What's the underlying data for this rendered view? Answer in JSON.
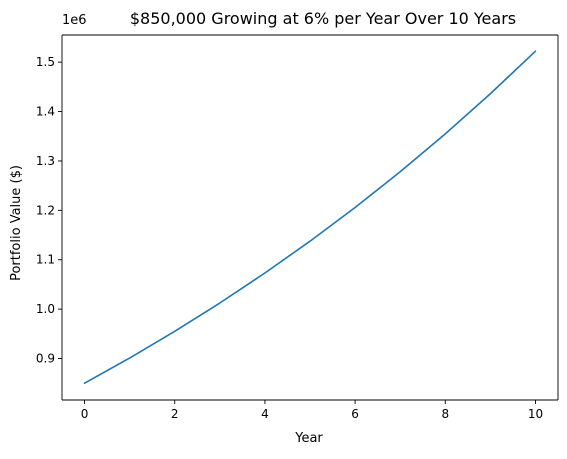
{
  "chart_data": {
    "type": "line",
    "title": "$850,000 Growing at 6% per Year Over 10 Years",
    "xlabel": "Year",
    "ylabel": "Portfolio Value ($)",
    "y_offset_label": "1e6",
    "y_scale_factor": 1000000,
    "xlim": [
      -0.5,
      10.5
    ],
    "ylim": [
      816000,
      1555000
    ],
    "grid": false,
    "legend": "none",
    "x_ticks": [
      0,
      2,
      4,
      6,
      8,
      10
    ],
    "x_tick_labels": [
      "0",
      "2",
      "4",
      "6",
      "8",
      "10"
    ],
    "y_ticks": [
      900000,
      1000000,
      1100000,
      1200000,
      1300000,
      1400000,
      1500000
    ],
    "y_tick_labels": [
      "0.9",
      "1.0",
      "1.1",
      "1.2",
      "1.3",
      "1.4",
      "1.5"
    ],
    "series": [
      {
        "color": "#1f77b4",
        "x": [
          0,
          1,
          2,
          3,
          4,
          5,
          6,
          7,
          8,
          9,
          10
        ],
        "values": [
          850000,
          901000,
          955060,
          1012364,
          1073106,
          1137492,
          1205742,
          1278086,
          1354771,
          1436057,
          1522221
        ]
      }
    ]
  }
}
